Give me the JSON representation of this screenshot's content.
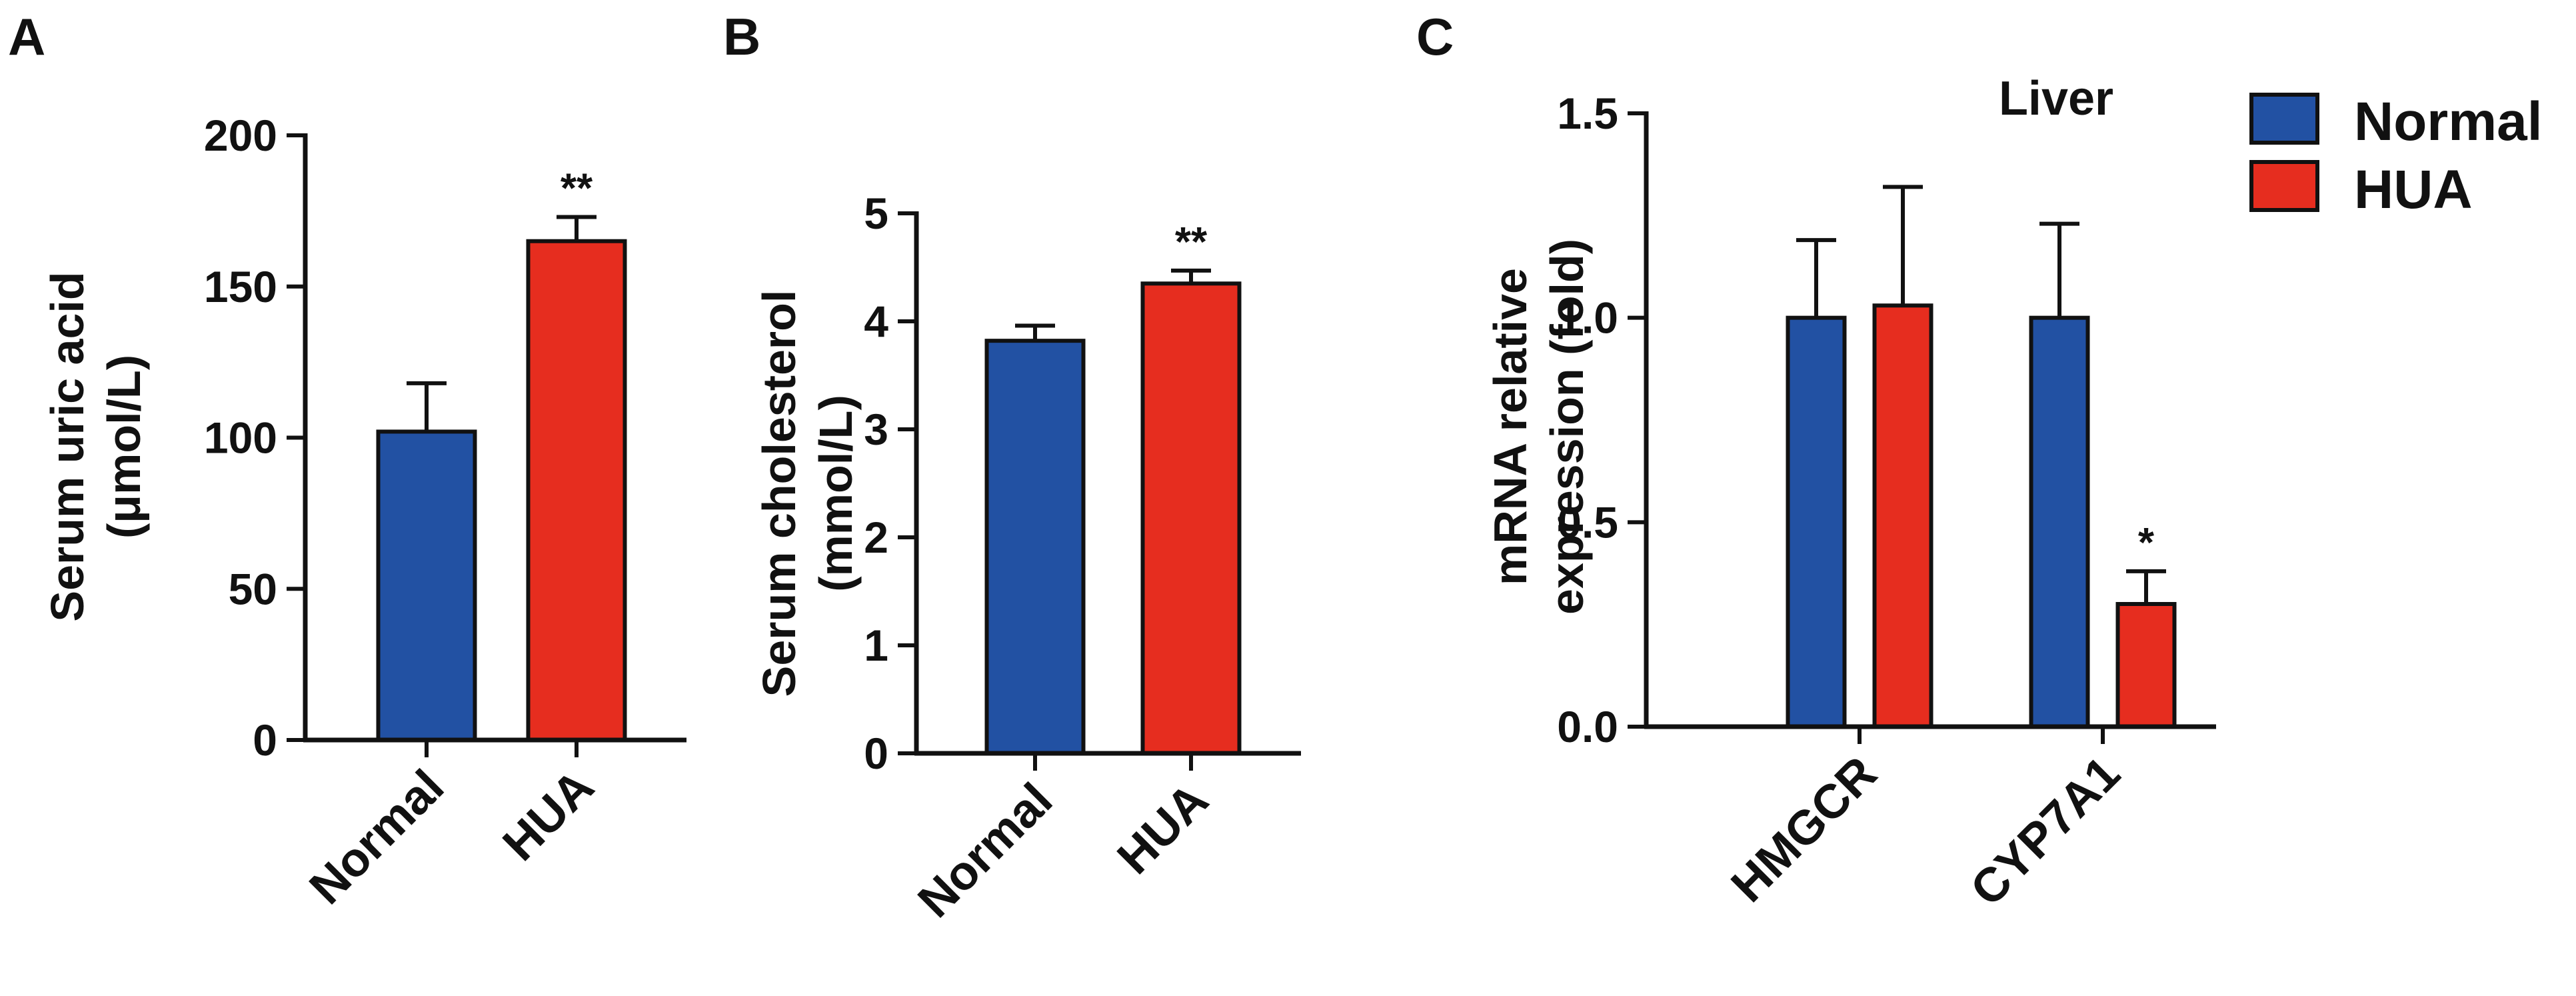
{
  "colors": {
    "normal": "#2251a3",
    "hua": "#e62d1f",
    "axis": "#111111"
  },
  "legend": [
    {
      "label": "Normal",
      "color_key": "normal"
    },
    {
      "label": "HUA",
      "color_key": "hua"
    }
  ],
  "chart_data": [
    {
      "panel": "A",
      "type": "bar",
      "title": "",
      "ylabel_lines": [
        "Serum uric acid",
        "(μmol/L)"
      ],
      "ylim": [
        0,
        200
      ],
      "yticks": [
        0,
        50,
        100,
        150,
        200
      ],
      "categories": [
        "Normal",
        "HUA"
      ],
      "series": [
        {
          "name": "Serum uric acid",
          "values": [
            102,
            165
          ],
          "errors": [
            16,
            8
          ],
          "color_keys": [
            "normal",
            "hua"
          ]
        }
      ],
      "annotations": [
        {
          "category_index": 1,
          "text": "**"
        }
      ]
    },
    {
      "panel": "B",
      "type": "bar",
      "title": "",
      "ylabel_lines": [
        "Serum cholesterol",
        "(mmol/L)"
      ],
      "ylim": [
        0,
        5
      ],
      "yticks": [
        0,
        1,
        2,
        3,
        4,
        5
      ],
      "categories": [
        "Normal",
        "HUA"
      ],
      "series": [
        {
          "name": "Serum cholesterol",
          "values": [
            3.82,
            4.35
          ],
          "errors": [
            0.14,
            0.12
          ],
          "color_keys": [
            "normal",
            "hua"
          ]
        }
      ],
      "annotations": [
        {
          "category_index": 1,
          "text": "**"
        }
      ]
    },
    {
      "panel": "C",
      "type": "bar",
      "title": "Liver",
      "ylabel_lines": [
        "mRNA relative",
        "expression (fold)"
      ],
      "ylim": [
        0,
        1.5
      ],
      "yticks": [
        0.0,
        0.5,
        1.0,
        1.5
      ],
      "ytick_labels": [
        "0.0",
        "0.5",
        "1.0",
        "1.5"
      ],
      "categories": [
        "HMGCR",
        "CYP7A1"
      ],
      "series": [
        {
          "name": "Normal",
          "values": [
            1.0,
            1.0
          ],
          "errors": [
            0.19,
            0.23
          ],
          "color_key": "normal"
        },
        {
          "name": "HUA",
          "values": [
            1.03,
            0.3
          ],
          "errors": [
            0.29,
            0.08
          ],
          "color_key": "hua"
        }
      ],
      "annotations": [
        {
          "category_index": 1,
          "series_index": 1,
          "text": "*"
        }
      ]
    }
  ]
}
